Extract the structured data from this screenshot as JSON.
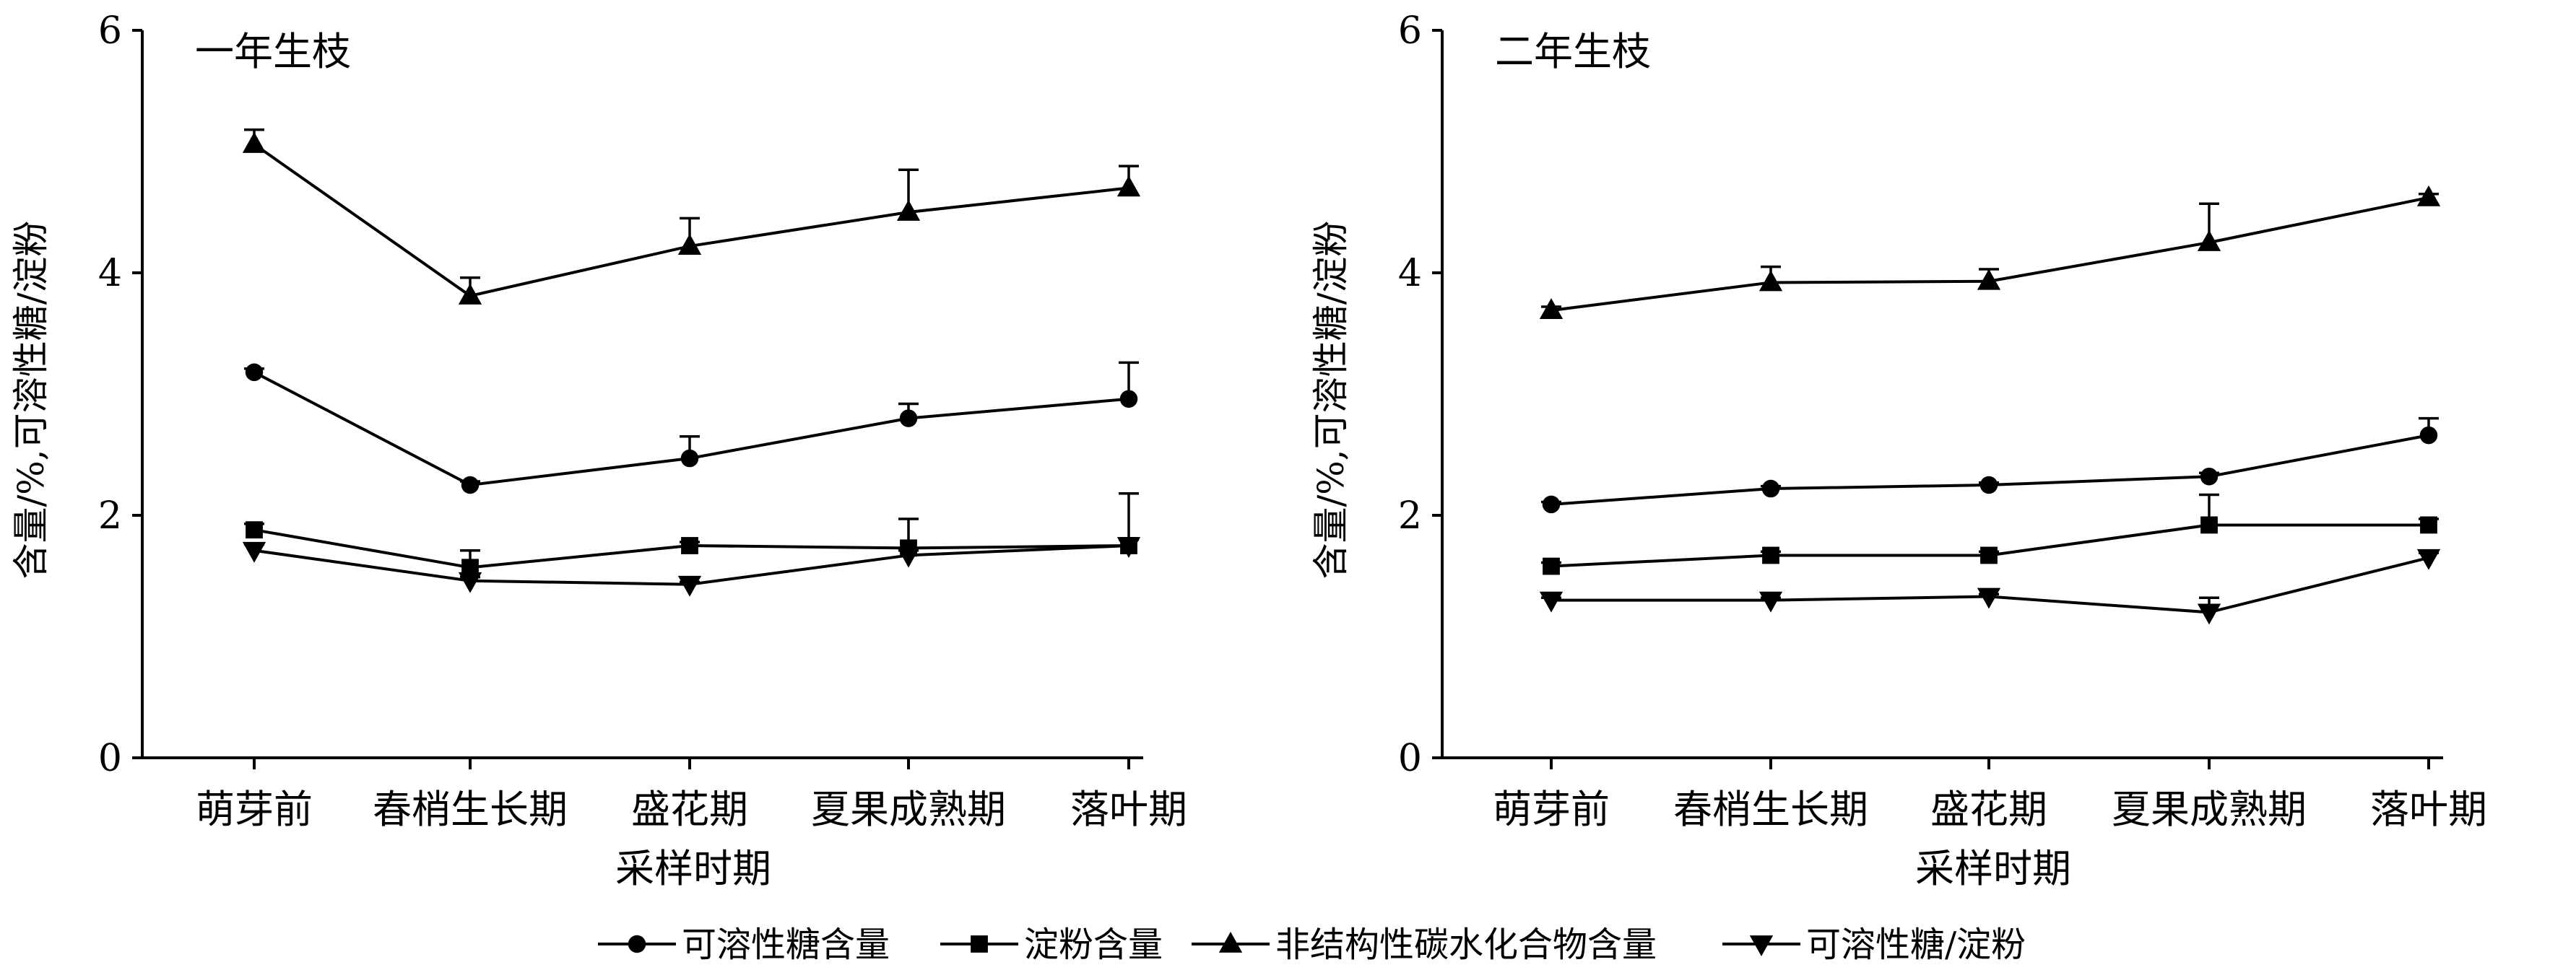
{
  "chart_data": [
    {
      "type": "line",
      "title": "一年生枝",
      "xlabel": "采样时期",
      "ylabel": "含量/%,可溶性糖/淀粉",
      "categories": [
        "萌芽前",
        "春梢生长期",
        "盛花期",
        "夏果成熟期",
        "落叶期"
      ],
      "ylim": [
        0,
        6
      ],
      "yticks": [
        0,
        2,
        4,
        6
      ],
      "grid": false,
      "series": [
        {
          "name": "可溶性糖含量",
          "marker": "circle",
          "values": [
            3.18,
            2.25,
            2.47,
            2.8,
            2.96
          ],
          "error": [
            0.03,
            0.03,
            0.18,
            0.12,
            0.3
          ]
        },
        {
          "name": "淀粉含量",
          "marker": "square",
          "values": [
            1.88,
            1.57,
            1.75,
            1.73,
            1.75
          ],
          "error": [
            0.05,
            0.14,
            0.03,
            0.24,
            0.43
          ]
        },
        {
          "name": "非结构性碳水化合物含量",
          "marker": "triangle-up",
          "values": [
            5.06,
            3.81,
            4.22,
            4.5,
            4.7
          ],
          "error": [
            0.12,
            0.15,
            0.23,
            0.35,
            0.18
          ]
        },
        {
          "name": "可溶性糖/淀粉",
          "marker": "triangle-down",
          "values": [
            1.71,
            1.46,
            1.43,
            1.67,
            1.75
          ],
          "error": [
            0.05,
            0.03,
            0.02,
            0.04,
            0.05
          ]
        }
      ]
    },
    {
      "type": "line",
      "title": "二年生枝",
      "xlabel": "采样时期",
      "ylabel": "含量/%,可溶性糖/淀粉",
      "categories": [
        "萌芽前",
        "春梢生长期",
        "盛花期",
        "夏果成熟期",
        "落叶期"
      ],
      "ylim": [
        0,
        6
      ],
      "yticks": [
        0,
        2,
        4,
        6
      ],
      "grid": false,
      "series": [
        {
          "name": "可溶性糖含量",
          "marker": "circle",
          "values": [
            2.09,
            2.22,
            2.25,
            2.32,
            2.66
          ],
          "error": [
            0.02,
            0.02,
            0.02,
            0.03,
            0.14
          ]
        },
        {
          "name": "淀粉含量",
          "marker": "square",
          "values": [
            1.58,
            1.67,
            1.67,
            1.92,
            1.92
          ],
          "error": [
            0.03,
            0.03,
            0.03,
            0.25,
            0.05
          ]
        },
        {
          "name": "非结构性碳水化合物含量",
          "marker": "triangle-up",
          "values": [
            3.69,
            3.92,
            3.93,
            4.25,
            4.62
          ],
          "error": [
            0.03,
            0.13,
            0.1,
            0.32,
            0.03
          ]
        },
        {
          "name": "可溶性糖/淀粉",
          "marker": "triangle-down",
          "values": [
            1.3,
            1.3,
            1.33,
            1.2,
            1.65
          ],
          "error": [
            0.02,
            0.02,
            0.02,
            0.12,
            0.04
          ]
        }
      ]
    }
  ],
  "legend": {
    "placement": "bottom",
    "items": [
      {
        "label": "可溶性糖含量",
        "marker": "circle"
      },
      {
        "label": "淀粉含量",
        "marker": "square"
      },
      {
        "label": "非结构性碳水化合物含量",
        "marker": "triangle-up"
      },
      {
        "label": "可溶性糖/淀粉",
        "marker": "triangle-down"
      }
    ]
  }
}
